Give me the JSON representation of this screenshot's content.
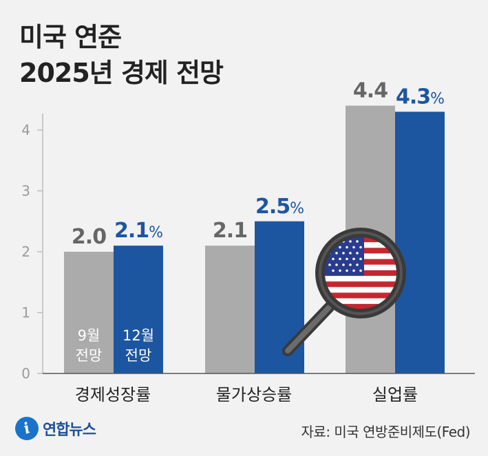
{
  "title_line1": "미국 연준",
  "title_line2": "2025년 경제 전망",
  "logo_text": "연합뉴스",
  "logo_mark": "i",
  "source": "자료: 미국 연방준비제도(Fed)",
  "colors": {
    "september": "#ababab",
    "december": "#1c56a1",
    "september_label": "#666666",
    "december_label": "#1c56a1",
    "background": "#f2f2f2"
  },
  "chart_data": {
    "type": "bar",
    "categories": [
      "경제성장률",
      "물가상승률",
      "실업률"
    ],
    "series": [
      {
        "name": "9월 전망",
        "values": [
          2.0,
          2.1,
          4.4
        ],
        "labels": [
          "2.0",
          "2.1",
          "4.4"
        ]
      },
      {
        "name": "12월 전망",
        "values": [
          2.1,
          2.5,
          4.3
        ],
        "labels": [
          "2.1",
          "2.5",
          "4.3"
        ],
        "unit": "%"
      }
    ],
    "in_bar_labels": [
      {
        "line1": "9월",
        "line2": "전망"
      },
      {
        "line1": "12월",
        "line2": "전망"
      }
    ],
    "yticks": [
      "0",
      "1",
      "2",
      "3",
      "4"
    ],
    "ylim": [
      0,
      5
    ],
    "grid": false,
    "illustration": "magnifying-glass-us-flag"
  }
}
